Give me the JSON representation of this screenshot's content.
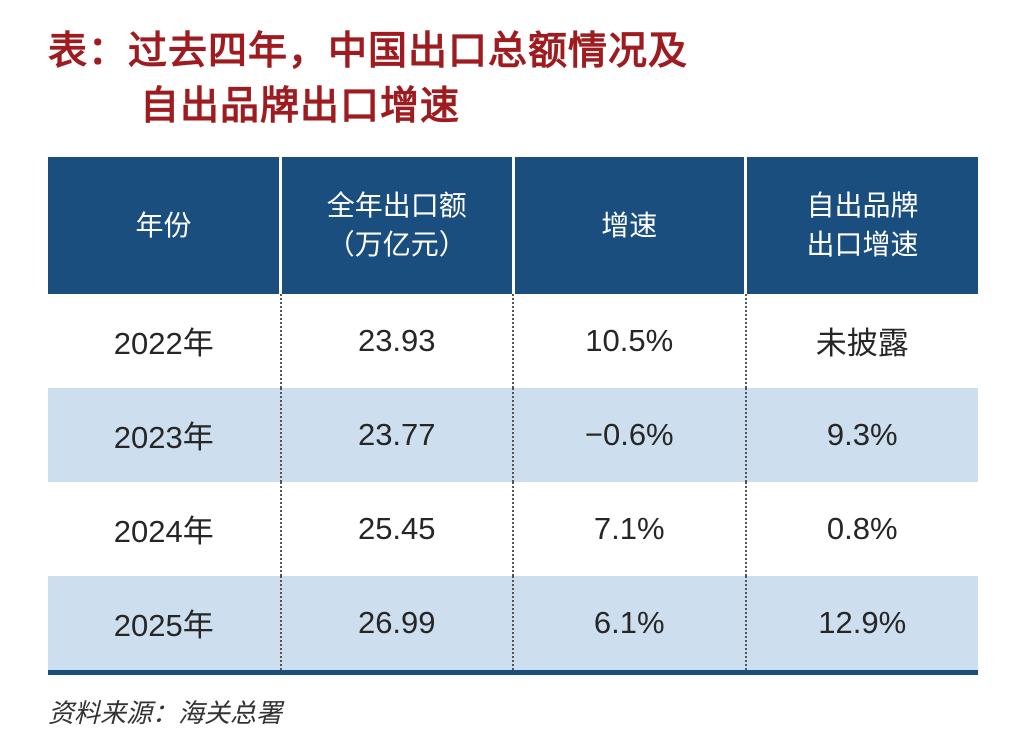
{
  "title": {
    "line1": "表：过去四年，中国出口总额情况及",
    "line2": "自出品牌出口增速"
  },
  "table": {
    "headers": [
      "年份",
      "全年出口额\n（万亿元）",
      "增速",
      "自出品牌\n出口增速"
    ],
    "rows": [
      [
        "2022年",
        "23.93",
        "10.5%",
        "未披露"
      ],
      [
        "2023年",
        "23.77",
        "−0.6%",
        "9.3%"
      ],
      [
        "2024年",
        "25.45",
        "7.1%",
        "0.8%"
      ],
      [
        "2025年",
        "26.99",
        "6.1%",
        "12.9%"
      ]
    ]
  },
  "source": "资料来源：海关总署",
  "colors": {
    "title_red": "#9e1b1f",
    "header_bg": "#1a4e7e",
    "alt_row_bg": "#cddfee",
    "bottom_rule": "#1a4e7e"
  },
  "chart_data": {
    "type": "table",
    "title": "过去四年，中国出口总额情况及自出品牌出口增速",
    "columns": [
      "年份",
      "全年出口额（万亿元）",
      "增速",
      "自出品牌出口增速"
    ],
    "rows": [
      {
        "年份": "2022年",
        "全年出口额（万亿元）": 23.93,
        "增速": "10.5%",
        "自出品牌出口增速": "未披露"
      },
      {
        "年份": "2023年",
        "全年出口额（万亿元）": 23.77,
        "增速": "-0.6%",
        "自出品牌出口增速": "9.3%"
      },
      {
        "年份": "2024年",
        "全年出口额（万亿元）": 25.45,
        "增速": "7.1%",
        "自出品牌出口增速": "0.8%"
      },
      {
        "年份": "2025年",
        "全年出口额（万亿元）": 26.99,
        "增速": "6.1%",
        "自出品牌出口增速": "12.9%"
      }
    ],
    "source": "资料来源：海关总署"
  }
}
